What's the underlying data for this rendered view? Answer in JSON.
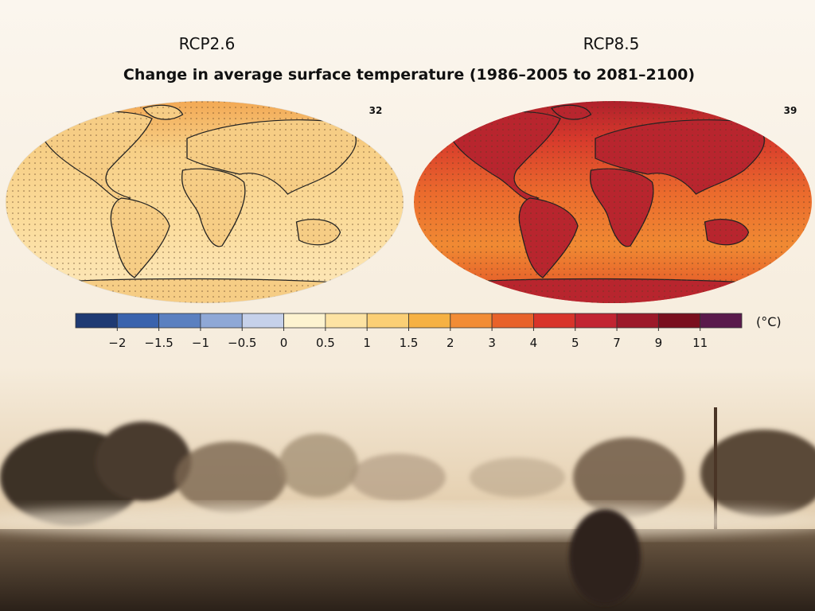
{
  "figure": {
    "title": "Change in average surface temperature (1986–2005 to 2081–2100)",
    "panels": [
      {
        "label": "RCP2.6",
        "number": "32"
      },
      {
        "label": "RCP8.5",
        "number": "39"
      }
    ],
    "color_scale": {
      "unit": "(°C)",
      "colors": [
        "#1f3a73",
        "#3a63ad",
        "#5b80c0",
        "#8fa8d6",
        "#c6d1ea",
        "#fdf3d0",
        "#fde3a3",
        "#fbcf75",
        "#f6b143",
        "#f28c35",
        "#e8622a",
        "#d8342a",
        "#c22532",
        "#9d1a2a",
        "#7a0f1e",
        "#5a1a4c"
      ],
      "ticks": [
        {
          "value": -2,
          "label": "−2"
        },
        {
          "value": -1.5,
          "label": "−1.5"
        },
        {
          "value": -1,
          "label": "−1"
        },
        {
          "value": -0.5,
          "label": "−0.5"
        },
        0,
        0.5,
        1,
        1.5,
        2,
        3,
        4,
        5,
        7,
        9,
        11
      ]
    }
  }
}
